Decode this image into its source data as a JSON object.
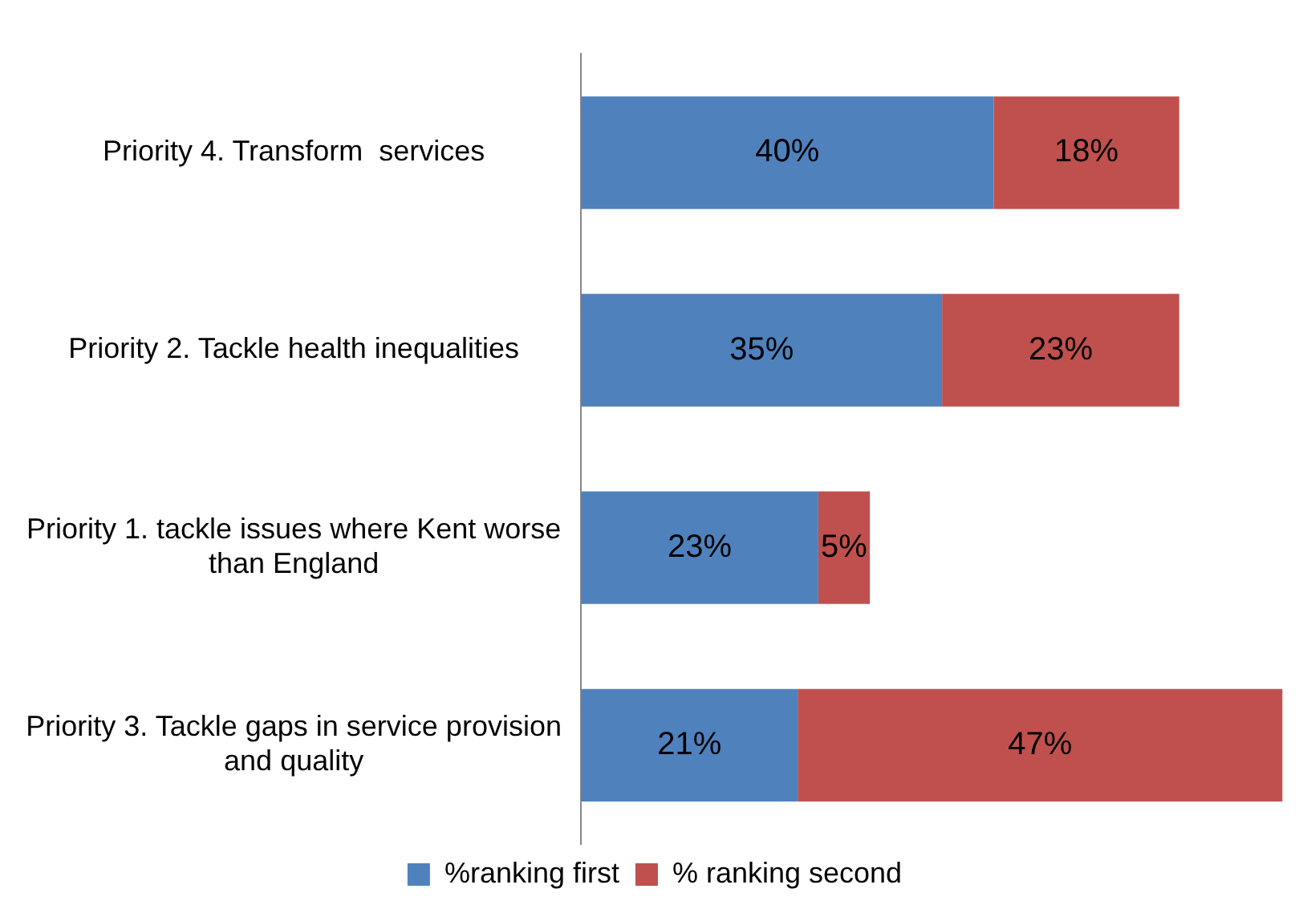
{
  "chart_data": {
    "type": "bar",
    "orientation": "horizontal",
    "stacked": true,
    "categories": [
      "Priority 4. Transform  services",
      "Priority 2. Tackle health inequalities",
      "Priority 1. tackle issues where Kent worse than England",
      "Priority 3. Tackle gaps in service provision and quality"
    ],
    "series": [
      {
        "name": "%ranking first",
        "color": "#4f81bd",
        "values": [
          40,
          35,
          23,
          21
        ],
        "value_labels": [
          "40%",
          "35%",
          "23%",
          "21%"
        ]
      },
      {
        "name": "% ranking second",
        "color": "#c0504d",
        "values": [
          18,
          23,
          5,
          47
        ],
        "value_labels": [
          "18%",
          "23%",
          "5%",
          "47%"
        ]
      }
    ],
    "legend": "bottom",
    "tick_labels": "y"
  }
}
